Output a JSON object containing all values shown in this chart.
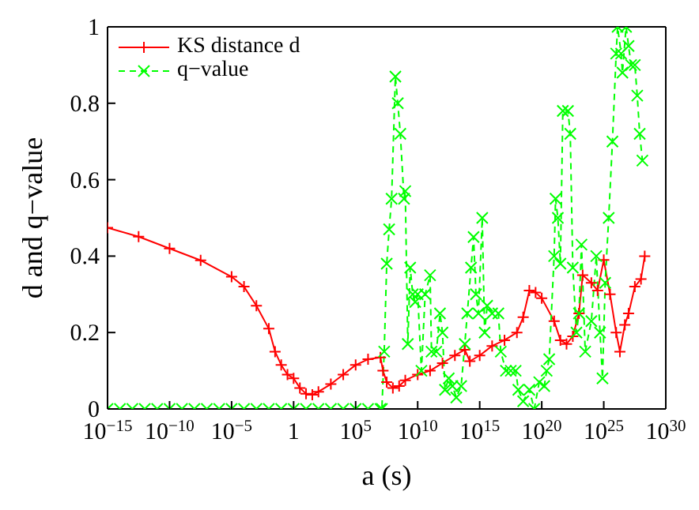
{
  "chart_data": {
    "type": "line",
    "xlabel": "a (s)",
    "ylabel": "d and q−value",
    "log": "x",
    "xlim": [
      1e-15,
      1e+30
    ],
    "xticks": [
      {
        "value": 1e-15,
        "label": "10$^{−15}$"
      },
      {
        "value": 1e-10,
        "label": "10$^{−10}$"
      },
      {
        "value": 1e-05,
        "label": "10$^{−5}$"
      },
      {
        "value": 1,
        "label": "1"
      },
      {
        "value": 100000.0,
        "label": "10$^{5}$"
      },
      {
        "value": 10000000000.0,
        "label": "10$^{10}$"
      },
      {
        "value": 1000000000000000.0,
        "label": "10$^{15}$"
      },
      {
        "value": 1e+20,
        "label": "10$^{20}$"
      },
      {
        "value": 1e+25,
        "label": "10$^{25}$"
      },
      {
        "value": 1e+30,
        "label": "10$^{30}$"
      }
    ],
    "ylim": [
      0,
      1
    ],
    "yticks": [
      0,
      0.2,
      0.4,
      0.6,
      0.8,
      1
    ],
    "legend": "top left",
    "series": [
      {
        "name": "KS distance d",
        "color": "#ff0000",
        "marker": "plus",
        "line_style": "solid",
        "x": [
          1e-15,
          3.2e-13,
          1e-10,
          3.2e-08,
          1e-05,
          0.0001,
          0.001,
          0.01,
          0.032,
          0.1,
          0.32,
          1,
          3.2,
          10,
          32,
          100,
          1000,
          10000.0,
          100000.0,
          1000000.0,
          10000000.0,
          16000000.0,
          32000000.0,
          100000000.0,
          320000000.0,
          1000000000.0,
          10000000000.0,
          100000000000.0,
          1000000000000.0,
          10000000000000.0,
          63000000000000.0,
          160000000000000.0,
          1000000000000000.0,
          1e+16,
          1e+17,
          1e+18,
          3.2e+18,
          1e+19,
          3.2e+19,
          1e+20,
          1e+21,
          3.2e+21,
          1e+22,
          3.2e+22,
          1e+23,
          2e+23,
          1e+24,
          3.2e+24,
          1e+25,
          3.2e+25,
          1e+26,
          2e+26,
          5e+26,
          1e+27,
          3.2e+27,
          1e+28,
          2e+28
        ],
        "values": [
          0.474,
          0.451,
          0.42,
          0.389,
          0.346,
          0.32,
          0.27,
          0.21,
          0.15,
          0.115,
          0.09,
          0.08,
          0.055,
          0.04,
          0.037,
          0.045,
          0.065,
          0.09,
          0.115,
          0.13,
          0.135,
          0.1,
          0.07,
          0.055,
          0.06,
          0.075,
          0.09,
          0.1,
          0.12,
          0.14,
          0.155,
          0.125,
          0.14,
          0.165,
          0.18,
          0.2,
          0.24,
          0.31,
          0.305,
          0.29,
          0.23,
          0.18,
          0.17,
          0.19,
          0.25,
          0.35,
          0.33,
          0.31,
          0.39,
          0.3,
          0.2,
          0.15,
          0.22,
          0.25,
          0.32,
          0.34,
          0.4
        ]
      },
      {
        "name": "q−value",
        "color": "#00ff00",
        "marker": "cross",
        "line_style": "dashed",
        "x": [
          1e-15,
          1e-14,
          1e-13,
          1e-12,
          1e-11,
          1e-10,
          1e-09,
          1e-08,
          1e-07,
          1e-06,
          1e-05,
          0.0001,
          0.001,
          0.01,
          0.1,
          1,
          10,
          100,
          1000,
          10000.0,
          100000.0,
          1000000.0,
          10000000.0,
          13000000.0,
          20000000.0,
          32000000.0,
          50000000.0,
          79000000.0,
          160000000.0,
          250000000.0,
          400000000.0,
          790000000.0,
          1000000000.0,
          1600000000.0,
          2500000000.0,
          4000000000.0,
          6300000000.0,
          10000000000.0,
          20000000000.0,
          40000000000.0,
          100000000000.0,
          130000000000.0,
          320000000000.0,
          630000000000.0,
          1000000000000.0,
          1600000000000.0,
          3200000000000.0,
          6300000000000.0,
          13000000000000.0,
          32000000000000.0,
          63000000000000.0,
          100000000000000.0,
          200000000000000.0,
          320000000000000.0,
          500000000000000.0,
          790000000000000.0,
          1600000000000000.0,
          2500000000000000.0,
          4000000000000000.0,
          1e+16,
          3.2e+16,
          5e+16,
          1.3e+17,
          3.2e+17,
          7.9e+17,
          1.3e+18,
          3.2e+18,
          1e+19,
          2.5e+19,
          6.3e+19,
          1.6e+20,
          2.5e+20,
          4e+20,
          1e+21,
          1.3e+21,
          2e+21,
          3.2e+21,
          5e+21,
          1.3e+22,
          2e+22,
          3.2e+22,
          6.3e+22,
          1e+23,
          1.6e+23,
          3.2e+23,
          1e+24,
          2.5e+24,
          5e+24,
          7.9e+24,
          1.3e+25,
          2.5e+25,
          5e+25,
          1e+26,
          1.3e+26,
          2.5e+26,
          3.2e+26,
          6.3e+26,
          1e+27,
          1.6e+27,
          3.2e+27,
          5e+27,
          7.9e+27,
          1.3e+28
        ],
        "values": [
          0,
          0,
          0,
          0,
          0,
          0,
          0,
          0,
          0,
          0,
          0,
          0,
          0,
          0,
          0,
          0,
          0,
          0,
          0,
          0,
          0,
          0,
          0,
          0,
          0.15,
          0.38,
          0.47,
          0.55,
          0.87,
          0.8,
          0.72,
          0.55,
          0.57,
          0.17,
          0.37,
          0.3,
          0.28,
          0.3,
          0.1,
          0.3,
          0.35,
          0.15,
          0.15,
          0.25,
          0.2,
          0.05,
          0.08,
          0.06,
          0.03,
          0.06,
          0.17,
          0.25,
          0.37,
          0.45,
          0.3,
          0.25,
          0.5,
          0.2,
          0.27,
          0.25,
          0.25,
          0.15,
          0.1,
          0.1,
          0.1,
          0.05,
          0.02,
          0.05,
          0,
          0.07,
          0.06,
          0.1,
          0.13,
          0.4,
          0.55,
          0.5,
          0.38,
          0.78,
          0.78,
          0.72,
          0.37,
          0.2,
          0.25,
          0.43,
          0.15,
          0.23,
          0.4,
          0.2,
          0.08,
          0.33,
          0.5,
          0.7,
          0.93,
          1,
          0.93,
          0.88,
          1,
          0.95,
          0.9,
          0.9,
          0.82,
          0.72,
          0.65
        ]
      }
    ]
  }
}
